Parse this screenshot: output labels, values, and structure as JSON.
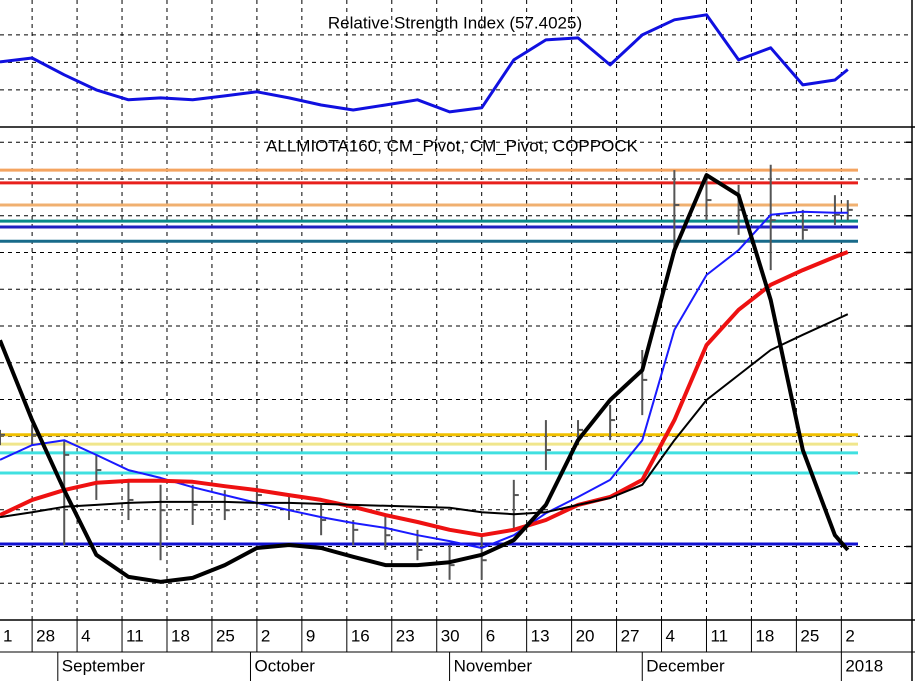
{
  "chart_data": [
    {
      "type": "line",
      "title": "Relative Strength Index (57.4025)",
      "color": "#1010e0",
      "x": [
        -5,
        0,
        5,
        10,
        15,
        20,
        25,
        30,
        35,
        40,
        45,
        50,
        55,
        60,
        65,
        70,
        75,
        80,
        85,
        90,
        95,
        100,
        105,
        110,
        115,
        120,
        125,
        127
      ],
      "values": [
        60.2,
        61.6,
        55.5,
        50.0,
        46.4,
        47.1,
        46.4,
        47.8,
        49.3,
        47.1,
        44.5,
        42.7,
        44.5,
        46.4,
        42.0,
        43.5,
        60.9,
        68.2,
        68.9,
        59.1,
        70.0,
        75.5,
        77.3,
        60.9,
        65.3,
        51.8,
        53.6,
        57.4
      ],
      "xlim": [
        -5,
        137
      ],
      "ylim": [
        36.5,
        82.7
      ],
      "yticks": [
        50,
        60,
        70
      ],
      "grid": true
    },
    {
      "type": "price",
      "title": "ALLMIOTA160, CM_Pivot, CM_Pivot, COPPOCK",
      "x": [
        -5,
        0,
        5,
        10,
        15,
        20,
        25,
        30,
        35,
        40,
        45,
        50,
        55,
        60,
        65,
        70,
        75,
        80,
        85,
        90,
        95,
        100,
        105,
        110,
        115,
        120,
        125,
        127
      ],
      "xlim": [
        -5,
        137
      ],
      "ylim": [
        0,
        100
      ],
      "yticks": [
        7.5,
        15,
        22.5,
        30,
        37.5,
        45,
        52.5,
        60,
        67.5,
        75,
        82.5,
        90,
        97.5
      ],
      "grid": true,
      "xticks": [
        {
          "value": -7,
          "label": "1"
        },
        {
          "value": 0,
          "label": "28"
        },
        {
          "value": 7,
          "label": "4"
        },
        {
          "value": 14,
          "label": "11"
        },
        {
          "value": 21,
          "label": "18"
        },
        {
          "value": 28,
          "label": "25"
        },
        {
          "value": 35,
          "label": "2"
        },
        {
          "value": 42,
          "label": "9"
        },
        {
          "value": 49,
          "label": "16"
        },
        {
          "value": 56,
          "label": "23"
        },
        {
          "value": 63,
          "label": "30"
        },
        {
          "value": 70,
          "label": "6"
        },
        {
          "value": 77,
          "label": "13"
        },
        {
          "value": 84,
          "label": "20"
        },
        {
          "value": 91,
          "label": "27"
        },
        {
          "value": 98,
          "label": "4"
        },
        {
          "value": 105,
          "label": "11"
        },
        {
          "value": 112,
          "label": "18"
        },
        {
          "value": 119,
          "label": "25"
        },
        {
          "value": 126,
          "label": "2"
        }
      ],
      "month_ticks": [
        {
          "value": 4,
          "label": "September"
        },
        {
          "value": 34,
          "label": "October"
        },
        {
          "value": 65,
          "label": "November"
        },
        {
          "value": 95,
          "label": "December"
        },
        {
          "value": 126,
          "label": "2018"
        }
      ],
      "levels": [
        {
          "color": "#f4a460",
          "value": 91.8
        },
        {
          "color": "#e8201c",
          "value": 89.2
        },
        {
          "color": "#f0b070",
          "value": 84.7
        },
        {
          "color": "#0a8a8a",
          "value": 81.4
        },
        {
          "color": "#2020c0",
          "value": 80.2
        },
        {
          "color": "#186a8a",
          "value": 77.3
        },
        {
          "color": "#f0c000",
          "value": 37.8
        },
        {
          "color": "#f0e68c",
          "value": 35.9
        },
        {
          "color": "#40e0e0",
          "value": 34.1
        },
        {
          "color": "#40e0e0",
          "value": 30.0
        },
        {
          "color": "#1010d0",
          "value": 15.5
        }
      ],
      "bars": {
        "color": "#555555",
        "high": [
          38.8,
          39.8,
          36.7,
          33.7,
          28.6,
          27.6,
          27.6,
          26.5,
          27.6,
          25.5,
          23.5,
          20.4,
          21.4,
          18.4,
          15.3,
          17.3,
          28.6,
          40.8,
          40.8,
          43.9,
          55.1,
          91.8,
          89.8,
          88.8,
          92.9,
          83.7,
          86.7,
          85.7
        ],
        "low": [
          35.7,
          35.7,
          15.3,
          24.5,
          20.4,
          12.2,
          19.4,
          20.4,
          23.5,
          20.4,
          17.3,
          15.3,
          14.3,
          12.2,
          8.2,
          8.2,
          18.4,
          30.6,
          35.7,
          36.7,
          41.8,
          75.5,
          81.6,
          78.6,
          71.4,
          77.6,
          80.6,
          81.6
        ],
        "close": [
          37.8,
          37.8,
          33.7,
          30.6,
          24.5,
          22.4,
          23.5,
          22.4,
          25.5,
          22.4,
          20.4,
          18.4,
          17.3,
          14.3,
          11.2,
          12.2,
          25.5,
          34.7,
          38.8,
          40.8,
          49.0,
          84.7,
          85.7,
          83.7,
          81.6,
          79.6,
          82.7,
          83.7
        ]
      },
      "series": [
        {
          "color": "#1a1aff",
          "width": 2,
          "values": [
            32.7,
            35.7,
            36.7,
            33.7,
            30.6,
            29.0,
            27.1,
            25.5,
            23.9,
            22.4,
            21.0,
            19.8,
            18.8,
            17.3,
            16.1,
            14.7,
            17.3,
            21.8,
            25.1,
            28.6,
            36.7,
            59.2,
            70.4,
            75.5,
            82.7,
            83.3,
            83.1,
            83.1
          ]
        },
        {
          "color": "#ee1111",
          "width": 4,
          "values": [
            21.4,
            24.5,
            26.5,
            28.0,
            28.4,
            28.4,
            28.2,
            27.3,
            26.5,
            25.5,
            24.5,
            23.1,
            21.4,
            20.0,
            18.4,
            17.3,
            18.4,
            20.4,
            23.5,
            25.1,
            28.6,
            40.8,
            56.1,
            63.3,
            68.4,
            71.4,
            74.1,
            75.1
          ]
        },
        {
          "color": "#000000",
          "width": 2,
          "values": [
            21.0,
            22.0,
            23.1,
            23.5,
            23.9,
            24.1,
            24.1,
            24.1,
            23.9,
            23.9,
            23.7,
            23.5,
            23.3,
            23.1,
            22.9,
            22.0,
            21.6,
            22.0,
            23.5,
            24.9,
            27.6,
            36.7,
            44.9,
            50.0,
            55.1,
            58.2,
            61.2,
            62.4
          ]
        },
        {
          "color": "#000000",
          "width": 4,
          "values": [
            57.1,
            40.8,
            26.5,
            13.3,
            8.8,
            7.8,
            8.6,
            11.2,
            14.7,
            15.3,
            14.7,
            12.9,
            11.2,
            11.2,
            11.8,
            13.3,
            16.3,
            23.5,
            36.7,
            44.9,
            51.0,
            75.5,
            90.8,
            86.7,
            65.3,
            34.7,
            17.3,
            14.3
          ]
        }
      ]
    }
  ]
}
